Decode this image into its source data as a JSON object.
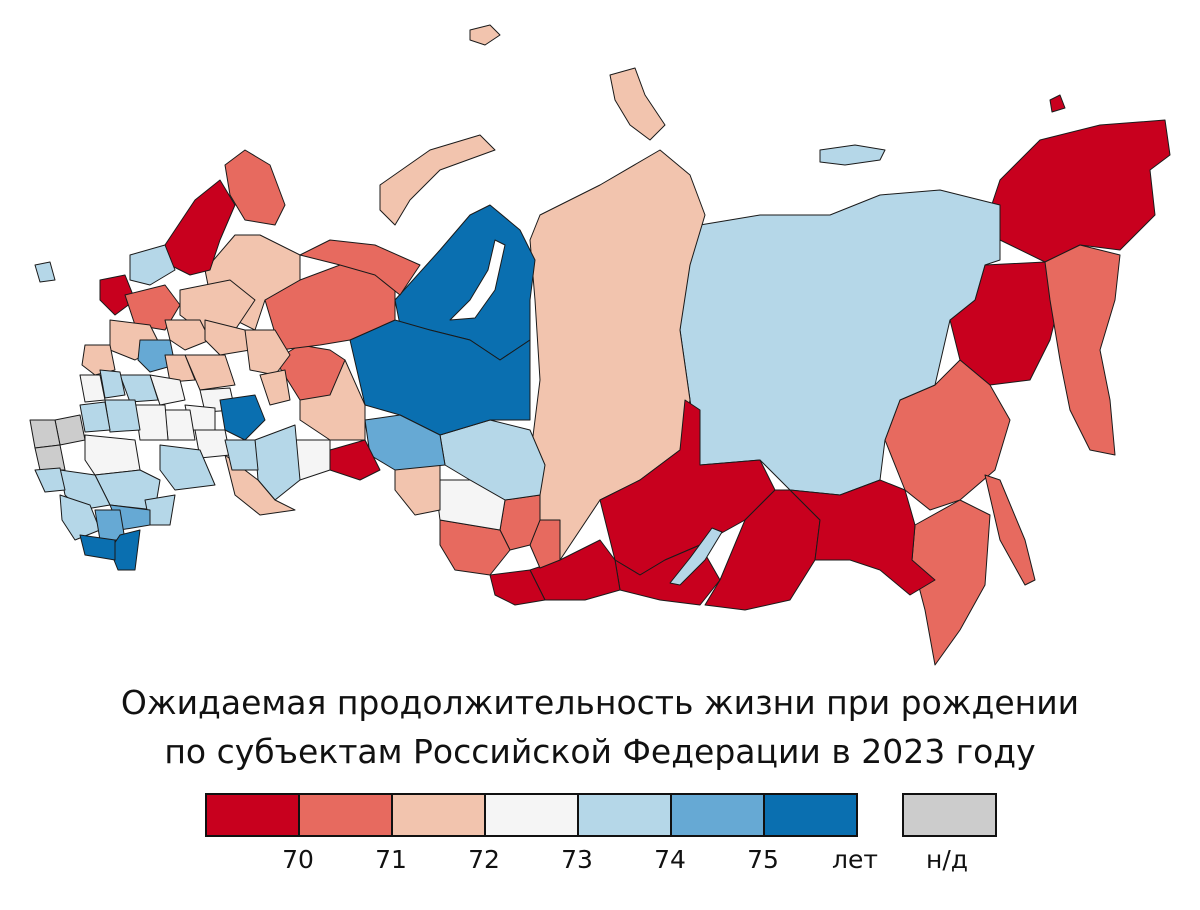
{
  "title_line1": "Ожидаемая продолжительность жизни при рождении",
  "title_line2": "по субъектам Российской Федерации в 2023 году",
  "legend": {
    "bins": [
      {
        "max": 70,
        "color": "#c8001e"
      },
      {
        "min": 70,
        "max": 71,
        "color": "#e76a5f"
      },
      {
        "min": 71,
        "max": 72,
        "color": "#f2c4ae"
      },
      {
        "min": 72,
        "max": 73,
        "color": "#f5f5f5"
      },
      {
        "min": 73,
        "max": 74,
        "color": "#b5d7e8"
      },
      {
        "min": 74,
        "max": 75,
        "color": "#66a9d4"
      },
      {
        "min": 75,
        "color": "#0a6fb0"
      }
    ],
    "ticks": [
      "70",
      "71",
      "72",
      "73",
      "74",
      "75"
    ],
    "unit": "лет",
    "na_label": "н/д",
    "na_color": "#cccccc"
  }
}
